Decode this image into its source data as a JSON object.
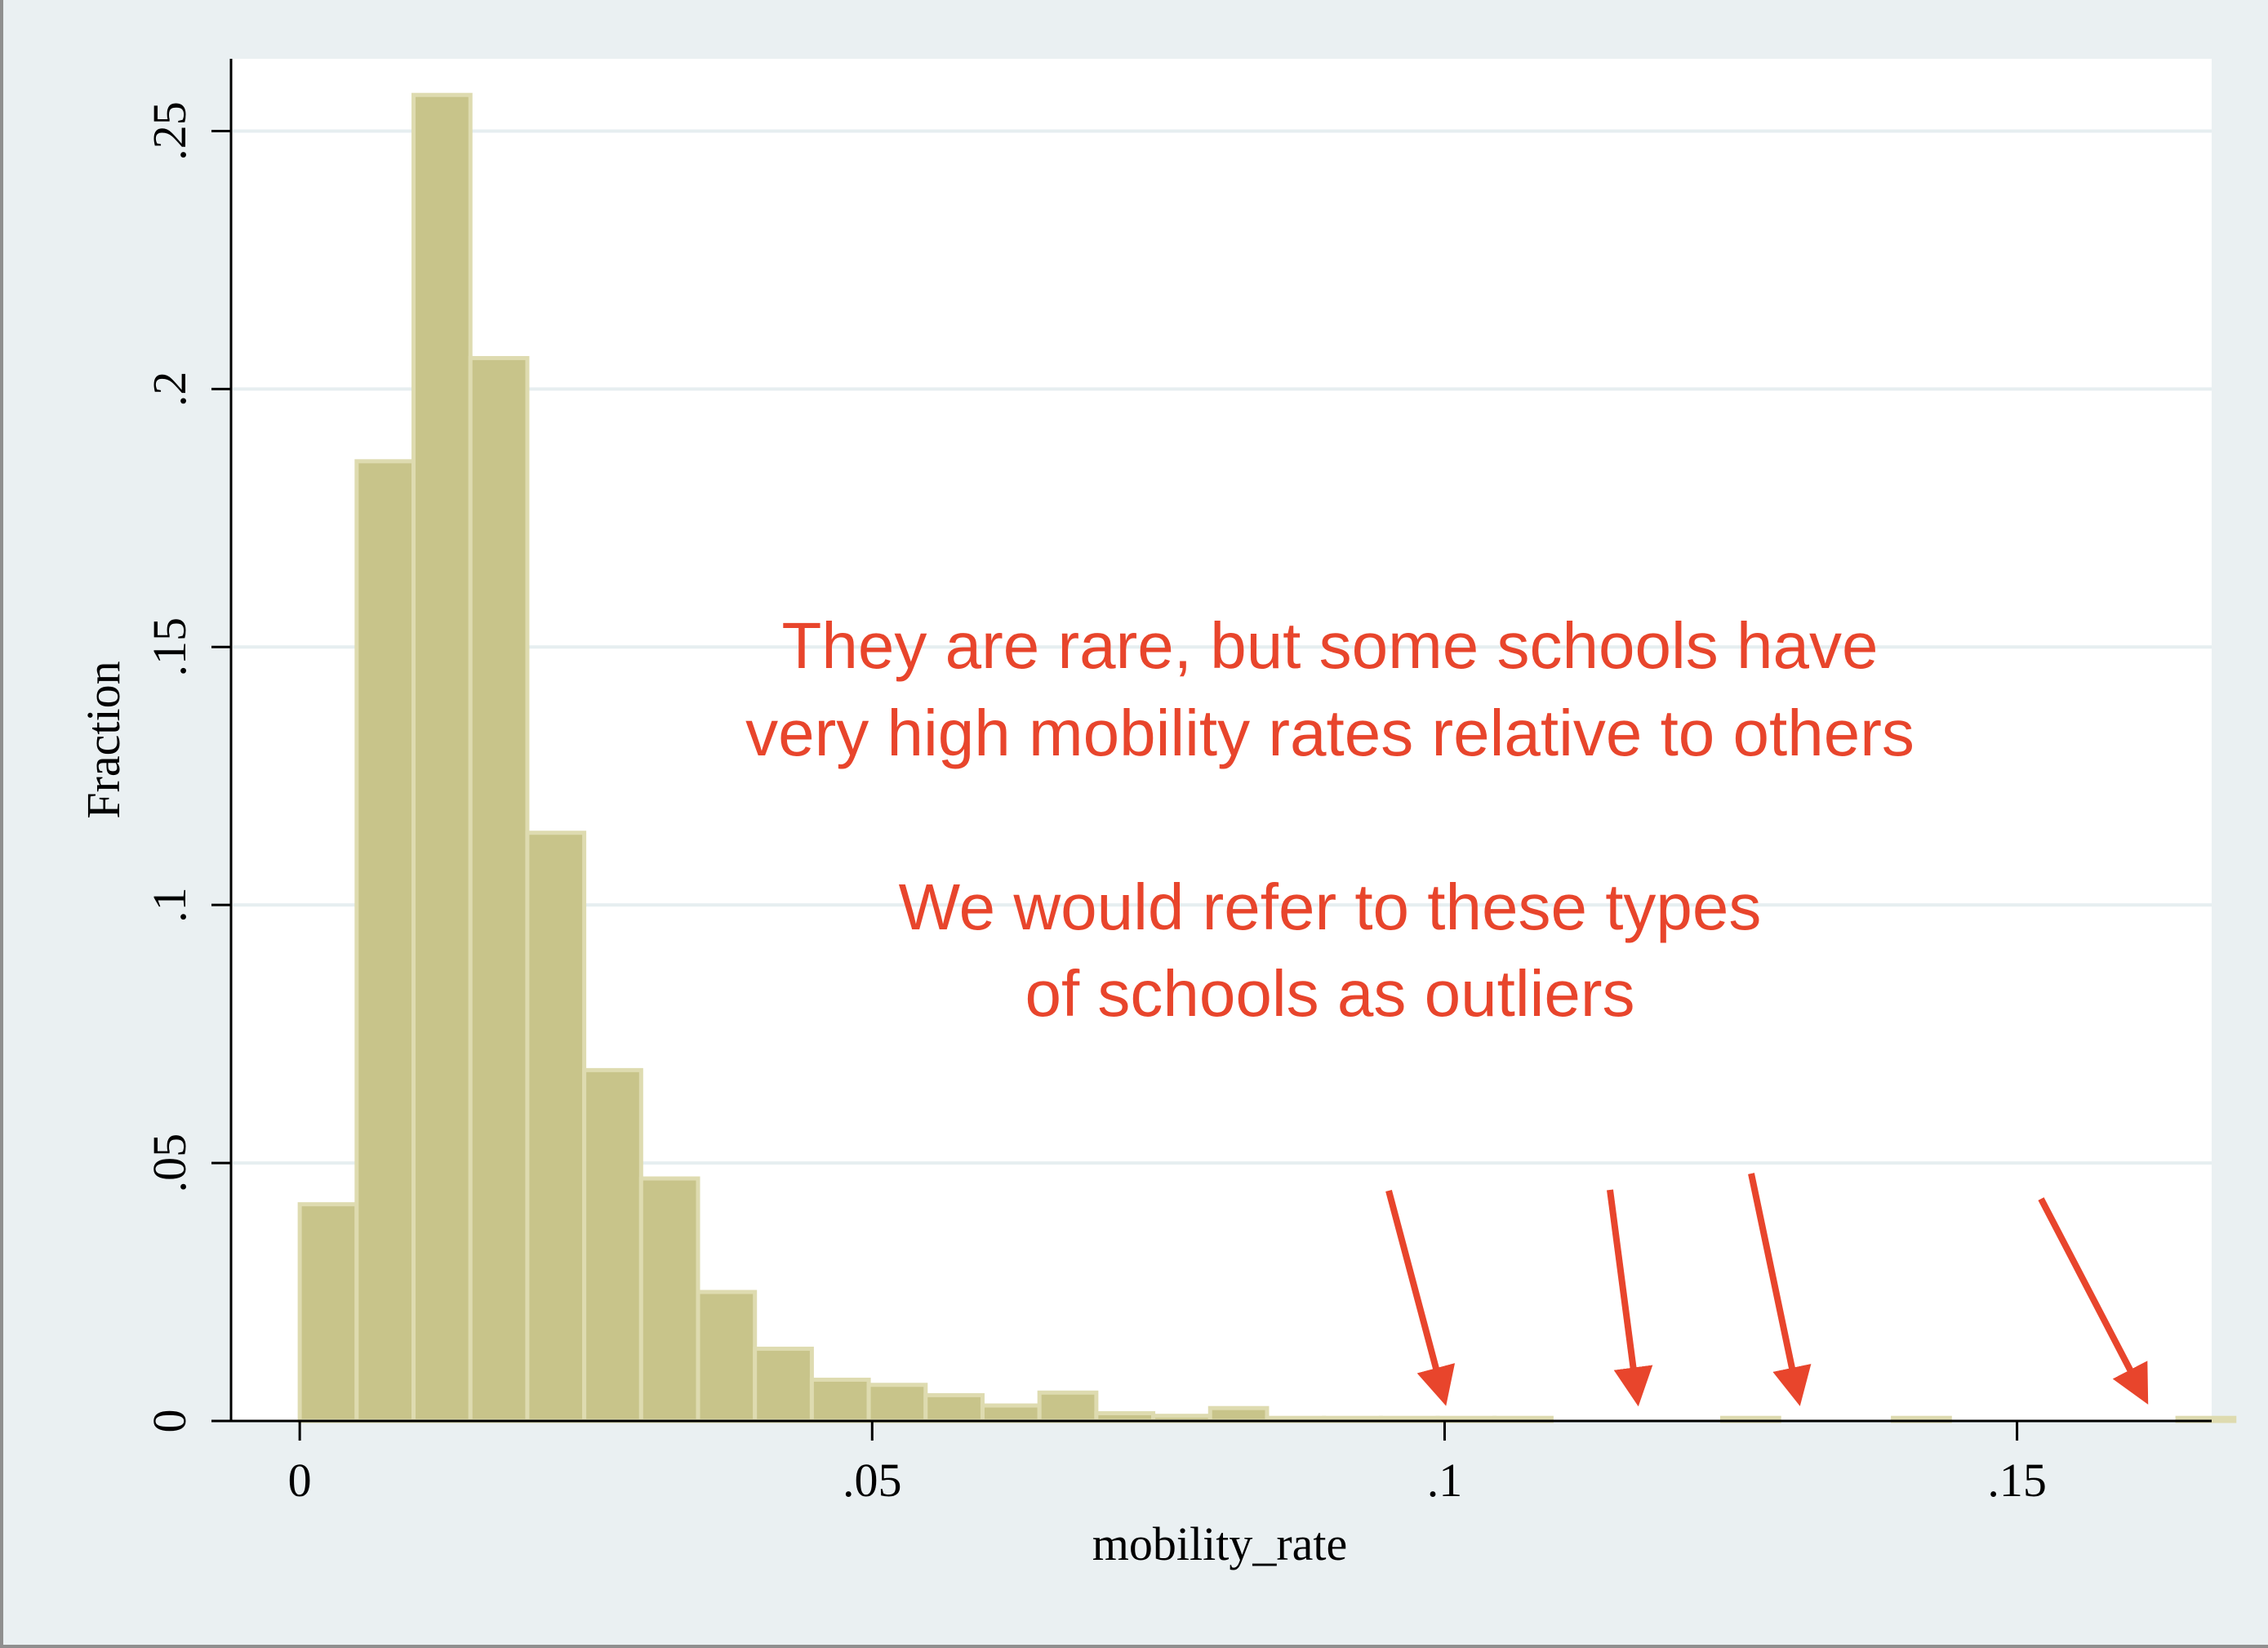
{
  "chart_data": {
    "type": "bar",
    "subtype": "histogram",
    "xlabel": "mobility_rate",
    "ylabel": "Fraction",
    "xlim": [
      -0.006,
      0.167
    ],
    "ylim": [
      0,
      0.264
    ],
    "x_ticks": [
      0,
      0.05,
      0.1,
      0.15
    ],
    "x_tick_labels": [
      "0",
      ".05",
      ".1",
      ".15"
    ],
    "y_ticks": [
      0,
      0.05,
      0.1,
      0.15,
      0.2,
      0.25
    ],
    "y_tick_labels": [
      "0",
      ".05",
      ".1",
      ".15",
      ".2",
      ".25"
    ],
    "grid": true,
    "bin_width": 0.00497,
    "bin_start": 0,
    "values": [
      0.042,
      0.186,
      0.257,
      0.206,
      0.114,
      0.068,
      0.047,
      0.025,
      0.014,
      0.008,
      0.007,
      0.005,
      0.003,
      0.0055,
      0.0015,
      0.001,
      0.0025,
      0.0006,
      0.0006,
      0.0006,
      0.0006,
      0.0006,
      0,
      0,
      0,
      0.0006,
      0,
      0,
      0.0006,
      0,
      0,
      0,
      0,
      0.0006
    ],
    "bar_color": "#c8c48a",
    "bar_edge_color": "#dedbb0",
    "annotations": [
      {
        "lines": [
          "They are rare, but some schools have",
          "very high mobility rates relative to others"
        ],
        "color": "#e8452c"
      },
      {
        "lines": [
          "We would refer to these types",
          "of schools as outliers"
        ],
        "color": "#e8452c"
      }
    ],
    "arrows_point_to": [
      0.1,
      0.117,
      0.131,
      0.161
    ],
    "arrow_color": "#e8452c"
  }
}
